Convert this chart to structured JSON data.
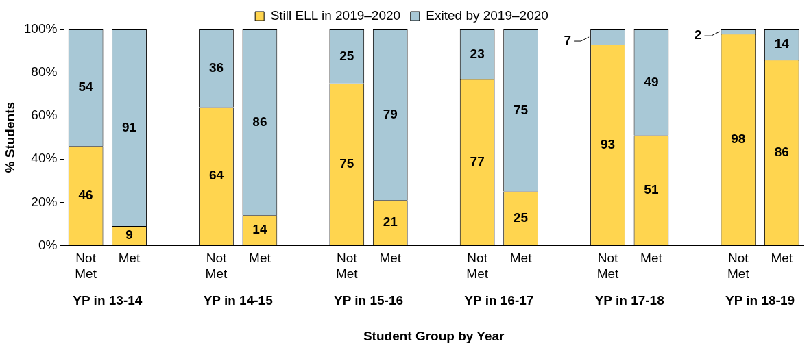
{
  "chart_data": {
    "type": "bar",
    "stacked": true,
    "xlabel": "Student Group by Year",
    "ylabel": "% Students",
    "categories": [
      "Not Met",
      "Met",
      null,
      "Not Met",
      "Met",
      null,
      "Not Met",
      "Met",
      null,
      "Not Met",
      "Met",
      null,
      "Not Met",
      "Met",
      null,
      "Not Met",
      "Met"
    ],
    "series": [
      {
        "name": "Still ELL in 2019–2020",
        "color": "#ffd54f",
        "values": [
          46,
          9,
          null,
          64,
          14,
          null,
          75,
          21,
          null,
          77,
          25,
          null,
          93,
          51,
          null,
          98,
          86
        ]
      },
      {
        "name": "Exited by 2019–2020",
        "color": "#a8c8d6",
        "values": [
          54,
          91,
          null,
          36,
          86,
          null,
          25,
          79,
          null,
          23,
          75,
          null,
          7,
          49,
          null,
          2,
          14
        ]
      }
    ],
    "ylim": [
      0,
      100
    ],
    "yticks": [
      {
        "value": 0,
        "label": "0%"
      },
      {
        "value": 20,
        "label": "20%"
      },
      {
        "value": 40,
        "label": "40%"
      },
      {
        "value": 60,
        "label": "60%"
      },
      {
        "value": 80,
        "label": "80%"
      },
      {
        "value": 100,
        "label": "100%"
      }
    ],
    "annotations": [
      "YP in 13-14",
      "YP in 14-15",
      "YP in 15-16",
      "YP in 16-17",
      "YP in 17-18",
      "YP in 18-19"
    ],
    "data_labels": true,
    "grid": false,
    "legend": "top"
  }
}
